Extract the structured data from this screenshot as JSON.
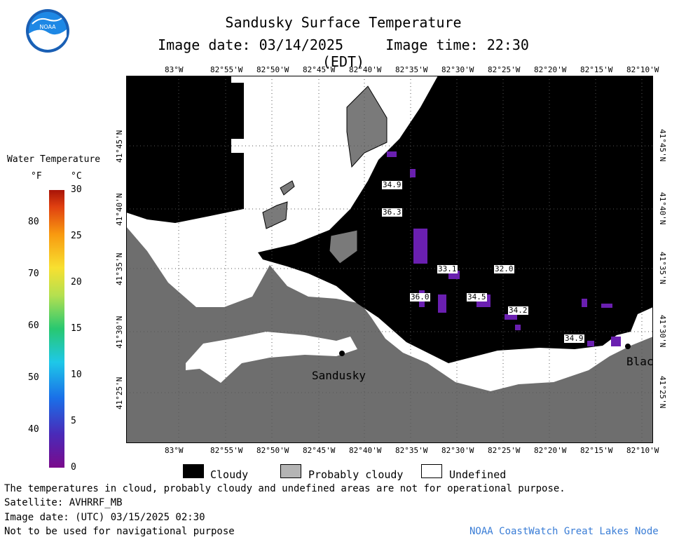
{
  "header": {
    "title": "Sandusky Surface Temperature",
    "image_date": "Image date: 03/14/2025",
    "image_time": "Image time: 22:30 (EDT)"
  },
  "logo": {
    "text": "NOAA"
  },
  "colorbar": {
    "title": "Water Temperature",
    "unit_f": "°F",
    "unit_c": "°C",
    "f_ticks": [
      "80",
      "70",
      "60",
      "50",
      "40"
    ],
    "c_ticks": [
      "30",
      "25",
      "20",
      "15",
      "10",
      "5",
      "0"
    ]
  },
  "map": {
    "lon_labels": [
      "83°W",
      "82°55'W",
      "82°50'W",
      "82°45'W",
      "82°40'W",
      "82°35'W",
      "82°30'W",
      "82°25'W",
      "82°20'W",
      "82°15'W",
      "82°10'W"
    ],
    "lat_labels": [
      "41°45'N",
      "41°40'N",
      "41°35'N",
      "41°30'N",
      "41°25'N"
    ],
    "temperature_labels": [
      "34.9",
      "36.3",
      "33.1",
      "32.0",
      "36.0",
      "34.5",
      "34.2",
      "34.9"
    ],
    "cities": [
      "Sandusky",
      "Blac"
    ],
    "colors": {
      "cloudy": "#000000",
      "probably_cloudy": "#6e6e6e",
      "undefined": "#ffffff",
      "cold_water": "#6a1fb0"
    }
  },
  "legend": {
    "cloudy": "Cloudy",
    "probably_cloudy": "Probably cloudy",
    "undefined": "Undefined"
  },
  "footer": {
    "disclaimer": "The temperatures in cloud, probably cloudy and undefined areas are not for operational purpose.",
    "satellite": "Satellite: AVHRRF_MB",
    "utc_date": "Image date: (UTC) 03/15/2025  02:30",
    "navigation": "Not to be used for navigational purpose",
    "credit": "NOAA CoastWatch Great Lakes Node"
  }
}
